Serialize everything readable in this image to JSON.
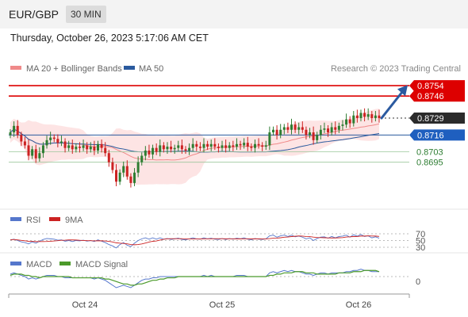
{
  "header": {
    "symbol": "EUR/GBP",
    "timeframe": "30 MIN"
  },
  "datetime": "Thursday, October 26, 2023 5:17:06 AM CET",
  "watermark": "Research © 2023 Trading Central",
  "colors": {
    "support": "#2e7d32",
    "resistance": "#dd0000",
    "current": "#333333",
    "ma50": "#2a5a9e",
    "ma20": "#f08a8a",
    "band": "#fde4e4",
    "up": "#2e7d32",
    "down": "#cc2222",
    "arrow": "#2b5aa0",
    "rsi": "#5577cc",
    "rsi_ma": "#cc2222",
    "macd": "#5577cc",
    "signal": "#4b9a2a"
  },
  "chart_data": [
    {
      "type": "candlestick",
      "x_ticks": [
        "Oct 24",
        "Oct 25",
        "Oct 26"
      ],
      "legend": [
        "MA 20 + Bollinger Bands",
        "MA 50"
      ],
      "ylim": [
        0.866,
        0.8762
      ],
      "levels": [
        {
          "value": "0.8754",
          "kind": "resistance"
        },
        {
          "value": "0.8746",
          "kind": "resistance"
        },
        {
          "value": "0.8729",
          "kind": "current"
        },
        {
          "value": "0.8716",
          "kind": "pivot"
        },
        {
          "value": "0.8703",
          "kind": "support"
        },
        {
          "value": "0.8695",
          "kind": "support"
        }
      ],
      "close": [
        0.8718,
        0.8723,
        0.8716,
        0.8711,
        0.8708,
        0.87,
        0.8705,
        0.8698,
        0.8702,
        0.8708,
        0.8712,
        0.8714,
        0.8713,
        0.871,
        0.8711,
        0.8706,
        0.8708,
        0.8705,
        0.8707,
        0.8706,
        0.8708,
        0.8705,
        0.8707,
        0.8704,
        0.8709,
        0.8706,
        0.8702,
        0.8695,
        0.8689,
        0.868,
        0.8687,
        0.8692,
        0.8684,
        0.8679,
        0.8687,
        0.8695,
        0.87,
        0.8704,
        0.8701,
        0.8706,
        0.8703,
        0.8708,
        0.8705,
        0.8707,
        0.8705,
        0.8706,
        0.8708,
        0.8705,
        0.8704,
        0.8706,
        0.8709,
        0.8707,
        0.8706,
        0.8709,
        0.8707,
        0.8709,
        0.8707,
        0.8706,
        0.8708,
        0.8706,
        0.8708,
        0.8707,
        0.8709,
        0.8708,
        0.871,
        0.8707,
        0.8706,
        0.8709,
        0.8708,
        0.8707,
        0.8708,
        0.8718,
        0.872,
        0.8716,
        0.872,
        0.8722,
        0.872,
        0.8724,
        0.872,
        0.8722,
        0.872,
        0.8716,
        0.8718,
        0.8712,
        0.8716,
        0.872,
        0.8721,
        0.8718,
        0.8722,
        0.872,
        0.8723,
        0.8724,
        0.8728,
        0.8725,
        0.8731,
        0.8729,
        0.8733,
        0.873,
        0.8732,
        0.8729,
        0.8731,
        0.8729
      ],
      "forecast_arrow": {
        "from": 0.8729,
        "to": 0.8752
      }
    },
    {
      "type": "line",
      "legend": [
        "RSI",
        "9MA"
      ],
      "levels": [
        "70",
        "50",
        "30"
      ],
      "rsi_range": [
        30,
        70
      ],
      "rsi": [
        52,
        54,
        50,
        46,
        44,
        40,
        46,
        42,
        48,
        53,
        56,
        55,
        54,
        51,
        52,
        48,
        50,
        47,
        50,
        49,
        51,
        48,
        50,
        47,
        52,
        48,
        44,
        38,
        34,
        28,
        38,
        44,
        36,
        32,
        42,
        50,
        55,
        58,
        54,
        58,
        54,
        58,
        54,
        56,
        53,
        55,
        57,
        53,
        52,
        55,
        58,
        55,
        54,
        58,
        55,
        57,
        54,
        53,
        56,
        53,
        56,
        54,
        57,
        55,
        58,
        54,
        52,
        56,
        54,
        53,
        55,
        64,
        66,
        60,
        64,
        66,
        62,
        66,
        61,
        63,
        60,
        55,
        58,
        50,
        56,
        60,
        61,
        57,
        62,
        58,
        62,
        63,
        66,
        60,
        67,
        63,
        68,
        62,
        64,
        58,
        61,
        57
      ]
    },
    {
      "type": "line",
      "legend": [
        "MACD",
        "MACD Signal"
      ],
      "levels": [
        "0"
      ],
      "macd": [
        0.0002,
        0.0003,
        0.0002,
        0.0001,
        0.0,
        -0.0002,
        -0.0001,
        -0.0002,
        -0.0001,
        0.0,
        0.0001,
        0.0001,
        0.0001,
        0.0,
        0.0,
        -0.0001,
        -0.0001,
        -0.0001,
        -0.0001,
        -0.0001,
        -0.0001,
        -0.0001,
        -0.0001,
        -0.0002,
        -0.0001,
        -0.0002,
        -0.0003,
        -0.0005,
        -0.0007,
        -0.0009,
        -0.0008,
        -0.0007,
        -0.0008,
        -0.0009,
        -0.0007,
        -0.0005,
        -0.0003,
        -0.0002,
        -0.0002,
        -0.0001,
        -0.0001,
        0.0,
        0.0,
        0.0,
        0.0,
        0.0,
        0.0,
        0.0,
        0.0,
        0.0,
        0.0,
        0.0,
        0.0,
        0.0001,
        0.0,
        0.0001,
        0.0,
        0.0,
        0.0,
        0.0,
        0.0,
        0.0,
        0.0001,
        0.0001,
        0.0001,
        0.0,
        0.0,
        0.0,
        0.0,
        0.0,
        0.0,
        0.0003,
        0.0004,
        0.0003,
        0.0004,
        0.0005,
        0.0004,
        0.0005,
        0.0004,
        0.0004,
        0.0003,
        0.0002,
        0.0002,
        0.0001,
        0.0002,
        0.0003,
        0.0003,
        0.0002,
        0.0003,
        0.0003,
        0.0003,
        0.0003,
        0.0004,
        0.0004,
        0.0005,
        0.0005,
        0.0006,
        0.0005,
        0.0005,
        0.0004,
        0.0004,
        0.0004
      ],
      "signal": [
        0.0001,
        0.0002,
        0.0002,
        0.0002,
        0.0001,
        0.0001,
        0.0,
        0.0,
        -0.0001,
        0.0,
        0.0,
        0.0,
        0.0,
        0.0,
        0.0,
        0.0,
        0.0,
        -0.0001,
        -0.0001,
        -0.0001,
        -0.0001,
        -0.0001,
        -0.0001,
        -0.0001,
        -0.0001,
        -0.0001,
        -0.0002,
        -0.0002,
        -0.0003,
        -0.0004,
        -0.0005,
        -0.0006,
        -0.0006,
        -0.0007,
        -0.0007,
        -0.0006,
        -0.0006,
        -0.0005,
        -0.0004,
        -0.0003,
        -0.0003,
        -0.0002,
        -0.0002,
        -0.0001,
        -0.0001,
        -0.0001,
        0.0,
        0.0,
        0.0,
        0.0,
        0.0,
        0.0,
        0.0,
        0.0,
        0.0,
        0.0,
        0.0,
        0.0,
        0.0,
        0.0,
        0.0,
        0.0,
        0.0,
        0.0,
        0.0,
        0.0,
        0.0,
        0.0,
        0.0,
        0.0,
        0.0,
        0.0001,
        0.0001,
        0.0002,
        0.0002,
        0.0003,
        0.0003,
        0.0003,
        0.0004,
        0.0004,
        0.0004,
        0.0003,
        0.0003,
        0.0003,
        0.0002,
        0.0002,
        0.0002,
        0.0002,
        0.0002,
        0.0002,
        0.0003,
        0.0003,
        0.0003,
        0.0003,
        0.0004,
        0.0004,
        0.0004,
        0.0005,
        0.0005,
        0.0005,
        0.0005,
        0.0004
      ]
    }
  ]
}
